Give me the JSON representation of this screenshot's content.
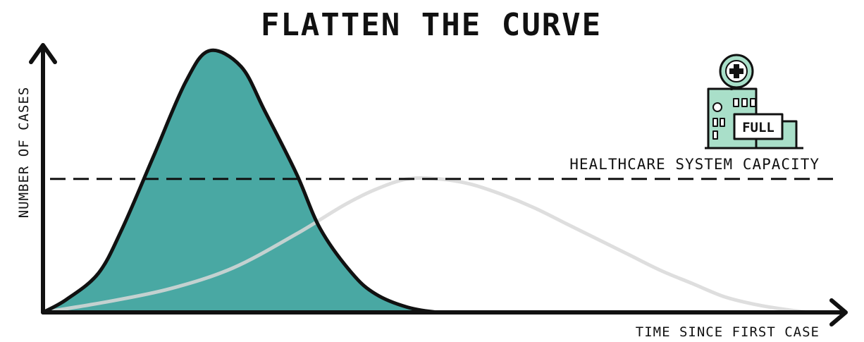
{
  "chart_data": {
    "type": "area",
    "title": "FLATTEN THE CURVE",
    "xlabel": "TIME SINCE FIRST CASE",
    "ylabel": "NUMBER OF CASES",
    "xlim": [
      0,
      100
    ],
    "ylim": [
      0,
      100
    ],
    "grid": false,
    "legend": "none",
    "series": [
      {
        "x": [
          0,
          3,
          7,
          10,
          14,
          18,
          21,
          25,
          28,
          32,
          35,
          39,
          42,
          46,
          50,
          53,
          57,
          60,
          64,
          67,
          71
        ],
        "values": [
          0,
          5,
          15,
          32,
          60,
          88,
          100,
          94,
          77,
          53,
          32,
          15,
          7,
          2,
          0,
          0,
          0,
          0,
          0,
          0,
          0
        ],
        "color": "#49a8a3"
      },
      {
        "x": [
          0,
          8,
          16,
          24,
          32,
          38,
          42,
          46,
          50,
          54,
          58,
          62,
          66,
          70,
          74,
          78,
          82,
          86,
          90,
          94,
          97,
          100
        ],
        "values": [
          0,
          4,
          9,
          17,
          30,
          41,
          47,
          51,
          51,
          49,
          45,
          40,
          34,
          28,
          22,
          16,
          11,
          6,
          3,
          1,
          0,
          0
        ],
        "color": "#d8d8d8"
      }
    ],
    "threshold": {
      "label": "HEALTHCARE SYSTEM CAPACITY",
      "value": 51
    },
    "annotation": {
      "icon": "hospital-icon",
      "sign_text": "FULL"
    },
    "colors": {
      "peak_fill": "#49a8a3",
      "flat_line": "#d8d8d8",
      "hospital": "#a9dfc9",
      "ink": "#111111"
    }
  }
}
